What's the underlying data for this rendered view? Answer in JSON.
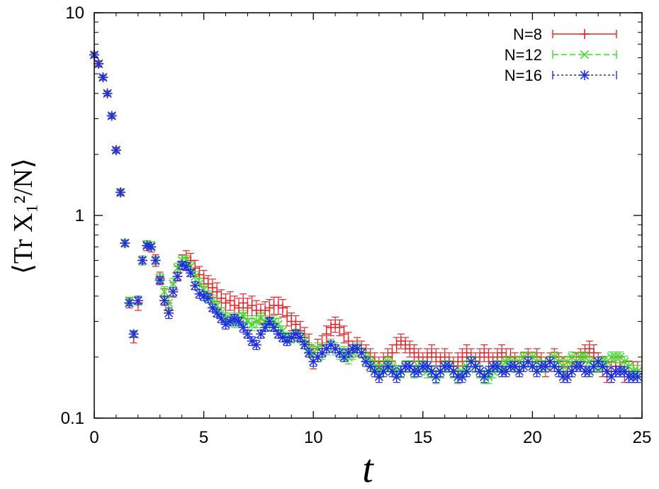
{
  "chart_data": {
    "type": "scatter",
    "xlabel": "t",
    "ylabel": "⟨Tr X₁²/N⟩",
    "xlim": [
      0,
      25
    ],
    "ylim": [
      0.1,
      10
    ],
    "yscale": "log",
    "grid": false,
    "legend_position": "top-right",
    "x_ticks": [
      0,
      5,
      10,
      15,
      20,
      25
    ],
    "x_tick_labels": [
      "0",
      "5",
      "10",
      "15",
      "20",
      "25"
    ],
    "y_ticks": [
      0.1,
      1,
      10
    ],
    "y_tick_labels": [
      "0.1",
      "1",
      "10"
    ],
    "series": [
      {
        "name": "N=8",
        "color": "#e8262a",
        "marker": "plus",
        "x": [
          0.0,
          0.2,
          0.4,
          0.6,
          0.8,
          1.0,
          1.2,
          1.4,
          1.6,
          1.8,
          2.0,
          2.2,
          2.4,
          2.6,
          2.8,
          3.0,
          3.2,
          3.4,
          3.6,
          3.8,
          4.0,
          4.2,
          4.4,
          4.6,
          4.8,
          5.0,
          5.2,
          5.4,
          5.6,
          5.8,
          6.0,
          6.2,
          6.4,
          6.6,
          6.8,
          7.0,
          7.2,
          7.4,
          7.6,
          7.8,
          8.0,
          8.2,
          8.4,
          8.6,
          8.8,
          9.0,
          9.2,
          9.4,
          9.6,
          9.8,
          10.0,
          10.2,
          10.4,
          10.6,
          10.8,
          11.0,
          11.2,
          11.4,
          11.6,
          11.8,
          12.0,
          12.2,
          12.4,
          12.6,
          12.8,
          13.0,
          13.2,
          13.4,
          13.6,
          13.8,
          14.0,
          14.2,
          14.4,
          14.6,
          14.8,
          15.0,
          15.2,
          15.4,
          15.6,
          15.8,
          16.0,
          16.2,
          16.4,
          16.6,
          16.8,
          17.0,
          17.2,
          17.4,
          17.6,
          17.8,
          18.0,
          18.2,
          18.4,
          18.6,
          18.8,
          19.0,
          19.2,
          19.4,
          19.6,
          19.8,
          20.0,
          20.2,
          20.4,
          20.6,
          20.8,
          21.0,
          21.2,
          21.4,
          21.6,
          21.8,
          22.0,
          22.2,
          22.4,
          22.6,
          22.8,
          23.0,
          23.2,
          23.4,
          23.6,
          23.8,
          24.0,
          24.2,
          24.4,
          24.6,
          24.8
        ],
        "y": [
          6.2,
          5.6,
          4.8,
          4.0,
          3.1,
          2.1,
          1.3,
          0.73,
          0.37,
          0.25,
          0.37,
          0.6,
          0.71,
          0.7,
          0.6,
          0.49,
          0.4,
          0.34,
          0.43,
          0.52,
          0.59,
          0.62,
          0.6,
          0.55,
          0.51,
          0.49,
          0.46,
          0.44,
          0.42,
          0.39,
          0.37,
          0.38,
          0.36,
          0.35,
          0.37,
          0.35,
          0.36,
          0.34,
          0.33,
          0.34,
          0.35,
          0.36,
          0.36,
          0.35,
          0.32,
          0.3,
          0.29,
          0.27,
          0.25,
          0.23,
          0.2,
          0.22,
          0.23,
          0.26,
          0.28,
          0.29,
          0.28,
          0.26,
          0.24,
          0.22,
          0.23,
          0.22,
          0.21,
          0.2,
          0.19,
          0.18,
          0.19,
          0.2,
          0.21,
          0.23,
          0.24,
          0.23,
          0.22,
          0.21,
          0.2,
          0.19,
          0.2,
          0.21,
          0.2,
          0.19,
          0.2,
          0.19,
          0.18,
          0.19,
          0.2,
          0.21,
          0.2,
          0.19,
          0.2,
          0.21,
          0.2,
          0.19,
          0.2,
          0.21,
          0.2,
          0.2,
          0.19,
          0.18,
          0.19,
          0.2,
          0.19,
          0.2,
          0.19,
          0.18,
          0.19,
          0.2,
          0.19,
          0.18,
          0.17,
          0.18,
          0.19,
          0.2,
          0.21,
          0.22,
          0.21,
          0.19,
          0.18,
          0.17,
          0.17,
          0.18,
          0.18,
          0.17,
          0.17,
          0.17,
          0.17
        ],
        "yerr": [
          0.2,
          0.2,
          0.15,
          0.12,
          0.1,
          0.07,
          0.05,
          0.03,
          0.02,
          0.015,
          0.03,
          0.03,
          0.04,
          0.04,
          0.04,
          0.035,
          0.035,
          0.03,
          0.035,
          0.04,
          0.05,
          0.05,
          0.05,
          0.05,
          0.05,
          0.045,
          0.045,
          0.045,
          0.045,
          0.04,
          0.04,
          0.04,
          0.04,
          0.04,
          0.04,
          0.04,
          0.04,
          0.04,
          0.035,
          0.035,
          0.035,
          0.035,
          0.035,
          0.035,
          0.035,
          0.03,
          0.03,
          0.03,
          0.03,
          0.03,
          0.025,
          0.025,
          0.025,
          0.025,
          0.025,
          0.025,
          0.025,
          0.025,
          0.025,
          0.02,
          0.02,
          0.02,
          0.02,
          0.02,
          0.02,
          0.02,
          0.02,
          0.02,
          0.02,
          0.02,
          0.02,
          0.02,
          0.02,
          0.02,
          0.02,
          0.02,
          0.02,
          0.02,
          0.02,
          0.02,
          0.02,
          0.02,
          0.02,
          0.02,
          0.02,
          0.02,
          0.02,
          0.02,
          0.02,
          0.02,
          0.02,
          0.02,
          0.02,
          0.02,
          0.02,
          0.02,
          0.02,
          0.02,
          0.02,
          0.02,
          0.02,
          0.02,
          0.02,
          0.02,
          0.02,
          0.02,
          0.02,
          0.02,
          0.02,
          0.02,
          0.02,
          0.02,
          0.02,
          0.02,
          0.02,
          0.02,
          0.02,
          0.02,
          0.02,
          0.02,
          0.02,
          0.02,
          0.02,
          0.02,
          0.02
        ]
      },
      {
        "name": "N=12",
        "color": "#3fdc2e",
        "marker": "cross",
        "x": [
          0.0,
          0.2,
          0.4,
          0.6,
          0.8,
          1.0,
          1.2,
          1.4,
          1.6,
          1.8,
          2.0,
          2.2,
          2.4,
          2.6,
          2.8,
          3.0,
          3.2,
          3.4,
          3.6,
          3.8,
          4.0,
          4.2,
          4.4,
          4.6,
          4.8,
          5.0,
          5.2,
          5.4,
          5.6,
          5.8,
          6.0,
          6.2,
          6.4,
          6.6,
          6.8,
          7.0,
          7.2,
          7.4,
          7.6,
          7.8,
          8.0,
          8.2,
          8.4,
          8.6,
          8.8,
          9.0,
          9.2,
          9.4,
          9.6,
          9.8,
          10.0,
          10.2,
          10.4,
          10.6,
          10.8,
          11.0,
          11.2,
          11.4,
          11.6,
          11.8,
          12.0,
          12.2,
          12.4,
          12.6,
          12.8,
          13.0,
          13.2,
          13.4,
          13.6,
          13.8,
          14.0,
          14.2,
          14.4,
          14.6,
          14.8,
          15.0,
          15.2,
          15.4,
          15.6,
          15.8,
          16.0,
          16.2,
          16.4,
          16.6,
          16.8,
          17.0,
          17.2,
          17.4,
          17.6,
          17.8,
          18.0,
          18.2,
          18.4,
          18.6,
          18.8,
          19.0,
          19.2,
          19.4,
          19.6,
          19.8,
          20.0,
          20.2,
          20.4,
          20.6,
          20.8,
          21.0,
          21.2,
          21.4,
          21.6,
          21.8,
          22.0,
          22.2,
          22.4,
          22.6,
          22.8,
          23.0,
          23.2,
          23.4,
          23.6,
          23.8,
          24.0,
          24.2,
          24.4,
          24.6,
          24.8
        ],
        "y": [
          6.2,
          5.6,
          4.8,
          4.0,
          3.1,
          2.1,
          1.3,
          0.73,
          0.38,
          0.26,
          0.38,
          0.6,
          0.72,
          0.71,
          0.6,
          0.49,
          0.42,
          0.37,
          0.46,
          0.55,
          0.6,
          0.6,
          0.56,
          0.5,
          0.46,
          0.43,
          0.4,
          0.38,
          0.36,
          0.33,
          0.31,
          0.31,
          0.3,
          0.31,
          0.32,
          0.3,
          0.29,
          0.3,
          0.31,
          0.3,
          0.29,
          0.3,
          0.29,
          0.27,
          0.25,
          0.25,
          0.26,
          0.25,
          0.24,
          0.22,
          0.21,
          0.22,
          0.21,
          0.22,
          0.23,
          0.22,
          0.21,
          0.21,
          0.2,
          0.21,
          0.22,
          0.21,
          0.2,
          0.19,
          0.18,
          0.17,
          0.18,
          0.19,
          0.18,
          0.17,
          0.17,
          0.18,
          0.18,
          0.17,
          0.18,
          0.18,
          0.17,
          0.17,
          0.16,
          0.17,
          0.18,
          0.18,
          0.17,
          0.16,
          0.17,
          0.18,
          0.19,
          0.18,
          0.17,
          0.16,
          0.16,
          0.17,
          0.18,
          0.18,
          0.19,
          0.19,
          0.18,
          0.19,
          0.2,
          0.19,
          0.2,
          0.19,
          0.18,
          0.18,
          0.19,
          0.2,
          0.19,
          0.18,
          0.19,
          0.2,
          0.19,
          0.2,
          0.2,
          0.19,
          0.18,
          0.18,
          0.19,
          0.19,
          0.2,
          0.2,
          0.2,
          0.19,
          0.18,
          0.17,
          0.17
        ],
        "yerr": [
          0.15,
          0.15,
          0.12,
          0.1,
          0.08,
          0.05,
          0.04,
          0.03,
          0.015,
          0.01,
          0.02,
          0.03,
          0.03,
          0.03,
          0.03,
          0.025,
          0.025,
          0.025,
          0.03,
          0.03,
          0.035,
          0.035,
          0.03,
          0.03,
          0.03,
          0.025,
          0.025,
          0.025,
          0.02,
          0.02,
          0.02,
          0.02,
          0.02,
          0.02,
          0.02,
          0.02,
          0.02,
          0.02,
          0.02,
          0.02,
          0.02,
          0.02,
          0.02,
          0.015,
          0.015,
          0.015,
          0.015,
          0.015,
          0.015,
          0.015,
          0.015,
          0.015,
          0.015,
          0.015,
          0.015,
          0.015,
          0.015,
          0.015,
          0.015,
          0.015,
          0.015,
          0.012,
          0.012,
          0.012,
          0.012,
          0.012,
          0.012,
          0.012,
          0.012,
          0.012,
          0.012,
          0.012,
          0.012,
          0.012,
          0.012,
          0.012,
          0.012,
          0.012,
          0.012,
          0.012,
          0.012,
          0.012,
          0.012,
          0.012,
          0.012,
          0.012,
          0.012,
          0.012,
          0.012,
          0.012,
          0.012,
          0.012,
          0.012,
          0.012,
          0.012,
          0.012,
          0.012,
          0.012,
          0.012,
          0.012,
          0.012,
          0.012,
          0.012,
          0.012,
          0.012,
          0.012,
          0.012,
          0.012,
          0.012,
          0.012,
          0.012,
          0.012,
          0.012,
          0.012,
          0.012,
          0.012,
          0.012,
          0.012,
          0.012,
          0.012,
          0.012,
          0.012,
          0.012,
          0.012,
          0.012
        ]
      },
      {
        "name": "N=16",
        "color": "#1f2fe0",
        "marker": "star",
        "x": [
          0.0,
          0.2,
          0.4,
          0.6,
          0.8,
          1.0,
          1.2,
          1.4,
          1.6,
          1.8,
          2.0,
          2.2,
          2.4,
          2.6,
          2.8,
          3.0,
          3.2,
          3.4,
          3.6,
          3.8,
          4.0,
          4.2,
          4.4,
          4.6,
          4.8,
          5.0,
          5.2,
          5.4,
          5.6,
          5.8,
          6.0,
          6.2,
          6.4,
          6.6,
          6.8,
          7.0,
          7.2,
          7.4,
          7.6,
          7.8,
          8.0,
          8.2,
          8.4,
          8.6,
          8.8,
          9.0,
          9.2,
          9.4,
          9.6,
          9.8,
          10.0,
          10.2,
          10.4,
          10.6,
          10.8,
          11.0,
          11.2,
          11.4,
          11.6,
          11.8,
          12.0,
          12.2,
          12.4,
          12.6,
          12.8,
          13.0,
          13.2,
          13.4,
          13.6,
          13.8,
          14.0,
          14.2,
          14.4,
          14.6,
          14.8,
          15.0,
          15.2,
          15.4,
          15.6,
          15.8,
          16.0,
          16.2,
          16.4,
          16.6,
          16.8,
          17.0,
          17.2,
          17.4,
          17.6,
          17.8,
          18.0,
          18.2,
          18.4,
          18.6,
          18.8,
          19.0,
          19.2,
          19.4,
          19.6,
          19.8,
          20.0,
          20.2,
          20.4,
          20.6,
          20.8,
          21.0,
          21.2,
          21.4,
          21.6,
          21.8,
          22.0,
          22.2,
          22.4,
          22.6,
          22.8,
          23.0,
          23.2,
          23.4,
          23.6,
          23.8,
          24.0,
          24.2,
          24.4,
          24.6,
          24.8
        ],
        "y": [
          6.2,
          5.6,
          4.8,
          4.0,
          3.1,
          2.1,
          1.3,
          0.73,
          0.37,
          0.26,
          0.38,
          0.6,
          0.71,
          0.7,
          0.6,
          0.48,
          0.38,
          0.33,
          0.42,
          0.5,
          0.57,
          0.56,
          0.52,
          0.45,
          0.41,
          0.4,
          0.39,
          0.35,
          0.33,
          0.31,
          0.29,
          0.3,
          0.31,
          0.3,
          0.28,
          0.26,
          0.24,
          0.23,
          0.26,
          0.28,
          0.3,
          0.28,
          0.26,
          0.25,
          0.24,
          0.25,
          0.26,
          0.25,
          0.23,
          0.21,
          0.19,
          0.2,
          0.21,
          0.22,
          0.23,
          0.22,
          0.21,
          0.2,
          0.21,
          0.22,
          0.22,
          0.21,
          0.19,
          0.18,
          0.17,
          0.16,
          0.17,
          0.18,
          0.17,
          0.16,
          0.17,
          0.18,
          0.18,
          0.17,
          0.17,
          0.18,
          0.18,
          0.17,
          0.16,
          0.17,
          0.18,
          0.18,
          0.17,
          0.16,
          0.16,
          0.17,
          0.19,
          0.18,
          0.17,
          0.16,
          0.17,
          0.18,
          0.18,
          0.17,
          0.17,
          0.18,
          0.18,
          0.17,
          0.18,
          0.19,
          0.18,
          0.17,
          0.18,
          0.18,
          0.19,
          0.18,
          0.17,
          0.16,
          0.16,
          0.17,
          0.18,
          0.18,
          0.17,
          0.17,
          0.18,
          0.19,
          0.18,
          0.17,
          0.16,
          0.17,
          0.17,
          0.17,
          0.16,
          0.16,
          0.16
        ],
        "yerr": [
          0.12,
          0.12,
          0.1,
          0.08,
          0.06,
          0.04,
          0.03,
          0.02,
          0.012,
          0.008,
          0.015,
          0.02,
          0.02,
          0.02,
          0.02,
          0.02,
          0.02,
          0.02,
          0.02,
          0.025,
          0.025,
          0.025,
          0.02,
          0.02,
          0.02,
          0.02,
          0.02,
          0.015,
          0.015,
          0.015,
          0.015,
          0.015,
          0.015,
          0.015,
          0.015,
          0.012,
          0.012,
          0.012,
          0.012,
          0.012,
          0.012,
          0.012,
          0.012,
          0.012,
          0.012,
          0.012,
          0.012,
          0.012,
          0.01,
          0.01,
          0.01,
          0.01,
          0.01,
          0.01,
          0.01,
          0.01,
          0.01,
          0.01,
          0.01,
          0.01,
          0.01,
          0.01,
          0.01,
          0.01,
          0.01,
          0.01,
          0.01,
          0.01,
          0.01,
          0.01,
          0.01,
          0.01,
          0.01,
          0.01,
          0.01,
          0.01,
          0.01,
          0.01,
          0.01,
          0.01,
          0.01,
          0.01,
          0.01,
          0.01,
          0.01,
          0.01,
          0.01,
          0.01,
          0.01,
          0.01,
          0.01,
          0.01,
          0.01,
          0.01,
          0.01,
          0.01,
          0.01,
          0.01,
          0.01,
          0.01,
          0.01,
          0.01,
          0.01,
          0.01,
          0.01,
          0.01,
          0.01,
          0.01,
          0.01,
          0.01,
          0.01,
          0.01,
          0.01,
          0.01,
          0.01,
          0.01,
          0.01,
          0.01,
          0.01,
          0.01,
          0.01,
          0.01,
          0.01,
          0.01,
          0.01
        ]
      }
    ]
  }
}
